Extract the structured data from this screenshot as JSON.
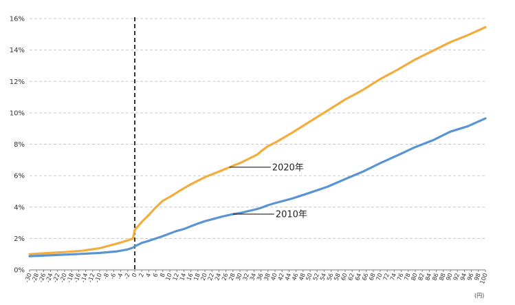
{
  "chart_data": {
    "type": "line",
    "title": "",
    "xlabel": "",
    "ylabel": "",
    "unit_label": "(円)",
    "xlim": [
      -30,
      100
    ],
    "ylim": [
      0,
      16
    ],
    "x_ticks": [
      -30,
      -28,
      -26,
      -24,
      -22,
      -20,
      -18,
      -16,
      -14,
      -12,
      -10,
      -8,
      -6,
      -4,
      -2,
      0,
      2,
      4,
      6,
      8,
      10,
      12,
      14,
      16,
      18,
      20,
      22,
      24,
      26,
      28,
      30,
      32,
      34,
      36,
      38,
      40,
      42,
      44,
      46,
      48,
      50,
      52,
      54,
      56,
      58,
      60,
      62,
      64,
      66,
      68,
      70,
      72,
      74,
      76,
      78,
      80,
      82,
      84,
      86,
      88,
      90,
      92,
      94,
      96,
      98,
      100
    ],
    "y_ticks": [
      0,
      2,
      4,
      6,
      8,
      10,
      12,
      14,
      16
    ],
    "y_tick_suffix": "%",
    "grid": true,
    "reference_line_x": 0,
    "x": [
      -30,
      -25,
      -20,
      -15,
      -10,
      -5,
      -2,
      -0.5,
      0,
      2,
      4,
      6,
      8,
      10,
      12,
      14,
      16,
      18,
      20,
      25,
      28,
      30,
      35,
      36,
      38,
      40,
      45,
      50,
      55,
      60,
      65,
      70,
      75,
      80,
      85,
      90,
      95,
      100
    ],
    "series": [
      {
        "name": "2020年",
        "color": "#f3ad3d",
        "values": [
          1.0,
          1.07,
          1.13,
          1.22,
          1.38,
          1.68,
          1.88,
          2.0,
          2.55,
          3.05,
          3.5,
          3.98,
          4.4,
          4.65,
          4.92,
          5.2,
          5.45,
          5.68,
          5.9,
          6.35,
          6.63,
          6.8,
          7.35,
          7.55,
          7.88,
          8.1,
          8.75,
          9.45,
          10.15,
          10.85,
          11.45,
          12.15,
          12.75,
          13.4,
          13.95,
          14.5,
          14.95,
          15.45
        ]
      },
      {
        "name": "2010年",
        "color": "#5b94d3",
        "values": [
          0.87,
          0.92,
          0.97,
          1.02,
          1.08,
          1.18,
          1.3,
          1.42,
          1.5,
          1.72,
          1.85,
          2.0,
          2.15,
          2.32,
          2.48,
          2.6,
          2.78,
          2.95,
          3.1,
          3.4,
          3.55,
          3.62,
          3.88,
          3.95,
          4.12,
          4.25,
          4.55,
          4.92,
          5.3,
          5.78,
          6.25,
          6.8,
          7.3,
          7.82,
          8.25,
          8.8,
          9.15,
          9.65
        ]
      }
    ],
    "annotations": [
      {
        "text": "2020年",
        "series": "2020年",
        "at_x": 27
      },
      {
        "text": "2010年",
        "series": "2010年",
        "at_x": 28
      }
    ]
  }
}
